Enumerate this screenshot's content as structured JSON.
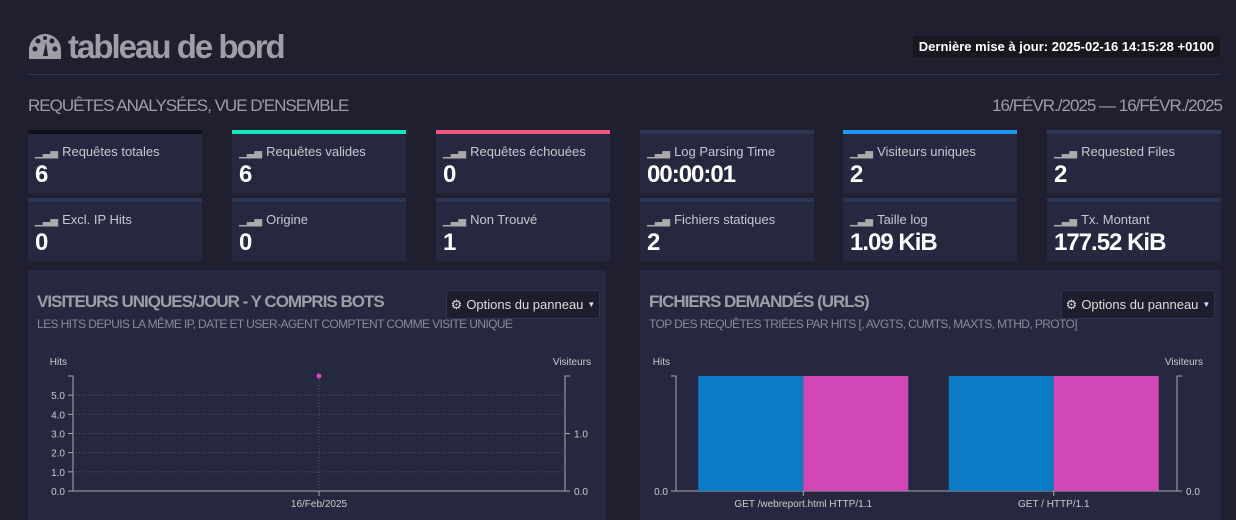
{
  "header": {
    "title": "tableau de bord",
    "icon": "dashboard-icon",
    "last_update": "Dernière mise à jour: 2025-02-16 14:15:28 +0100"
  },
  "overview": {
    "title": "REQUÊTES ANALYSÉES, VUE D'ENSEMBLE",
    "date_range": "16/FÉVR./2025 — 16/FÉVR./2025"
  },
  "colors": {
    "hits": "#0b7bc6",
    "visitors": "#cf48b5",
    "valid": "#14e6c0",
    "failed": "#f0557f",
    "unique": "#2196f3"
  },
  "stats": [
    {
      "label": "Requêtes totales",
      "value": "6",
      "accent": "#111118"
    },
    {
      "label": "Requêtes valides",
      "value": "6",
      "accent": "#14e6c0"
    },
    {
      "label": "Requêtes échouées",
      "value": "0",
      "accent": "#f0557f"
    },
    {
      "label": "Log Parsing Time",
      "value": "00:00:01",
      "accent": "#2e3656"
    },
    {
      "label": "Visiteurs uniques",
      "value": "2",
      "accent": "#2196f3"
    },
    {
      "label": "Requested Files",
      "value": "2",
      "accent": "#2e3656"
    },
    {
      "label": "Excl. IP Hits",
      "value": "0",
      "accent": "#2e3656"
    },
    {
      "label": "Origine",
      "value": "0",
      "accent": "#2e3656"
    },
    {
      "label": "Non Trouvé",
      "value": "1",
      "accent": "#2e3656"
    },
    {
      "label": "Fichiers statiques",
      "value": "2",
      "accent": "#2e3656"
    },
    {
      "label": "Taille log",
      "value": "1.09 KiB",
      "accent": "#2e3656"
    },
    {
      "label": "Tx. Montant",
      "value": "177.52 KiB",
      "accent": "#2e3656"
    }
  ],
  "panels": {
    "visitors": {
      "title": "VISITEURS UNIQUES/JOUR - Y COMPRIS BOTS",
      "subtitle": "LES HITS DEPUIS LA MÊME IP, DATE ET USER-AGENT COMPTENT COMME VISITE UNIQUE",
      "options": "Options du panneau"
    },
    "requests": {
      "title": "FICHIERS DEMANDÉS (URLS)",
      "subtitle": "TOP DES REQUÊTES TRIÉES PAR HITS [, AVGTS, CUMTS, MAXTS, MTHD, PROTO]",
      "options": "Options du panneau"
    }
  },
  "chart_data": [
    {
      "type": "line",
      "ylabel": "Hits",
      "y2label": "Visiteurs",
      "categories": [
        "16/Feb/2025"
      ],
      "series": [
        {
          "values": [
            6
          ],
          "axis": "left",
          "color": "#0b7bc6"
        },
        {
          "values": [
            2
          ],
          "axis": "right",
          "color": "#cf48b5"
        }
      ],
      "yticks": [
        "0.0",
        "1.0",
        "2.0",
        "3.0",
        "4.0",
        "5.0"
      ],
      "y2ticks": [
        "0.0",
        "1.0"
      ],
      "ylim": [
        0,
        6
      ],
      "y2lim": [
        0,
        2
      ],
      "grid": true
    },
    {
      "type": "bar",
      "ylabel": "Hits",
      "y2label": "Visiteurs",
      "categories": [
        "GET /webreport.html HTTP/1.1",
        "GET / HTTP/1.1"
      ],
      "series": [
        {
          "values": [
            3,
            3
          ],
          "axis": "left",
          "color": "#0b7bc6"
        },
        {
          "values": [
            2,
            2
          ],
          "axis": "right",
          "color": "#cf48b5"
        }
      ],
      "yticks": [
        "0.0"
      ],
      "y2ticks": [
        "0.0"
      ],
      "ylim": [
        0,
        3
      ],
      "y2lim": [
        0,
        2
      ],
      "grid": false
    }
  ]
}
